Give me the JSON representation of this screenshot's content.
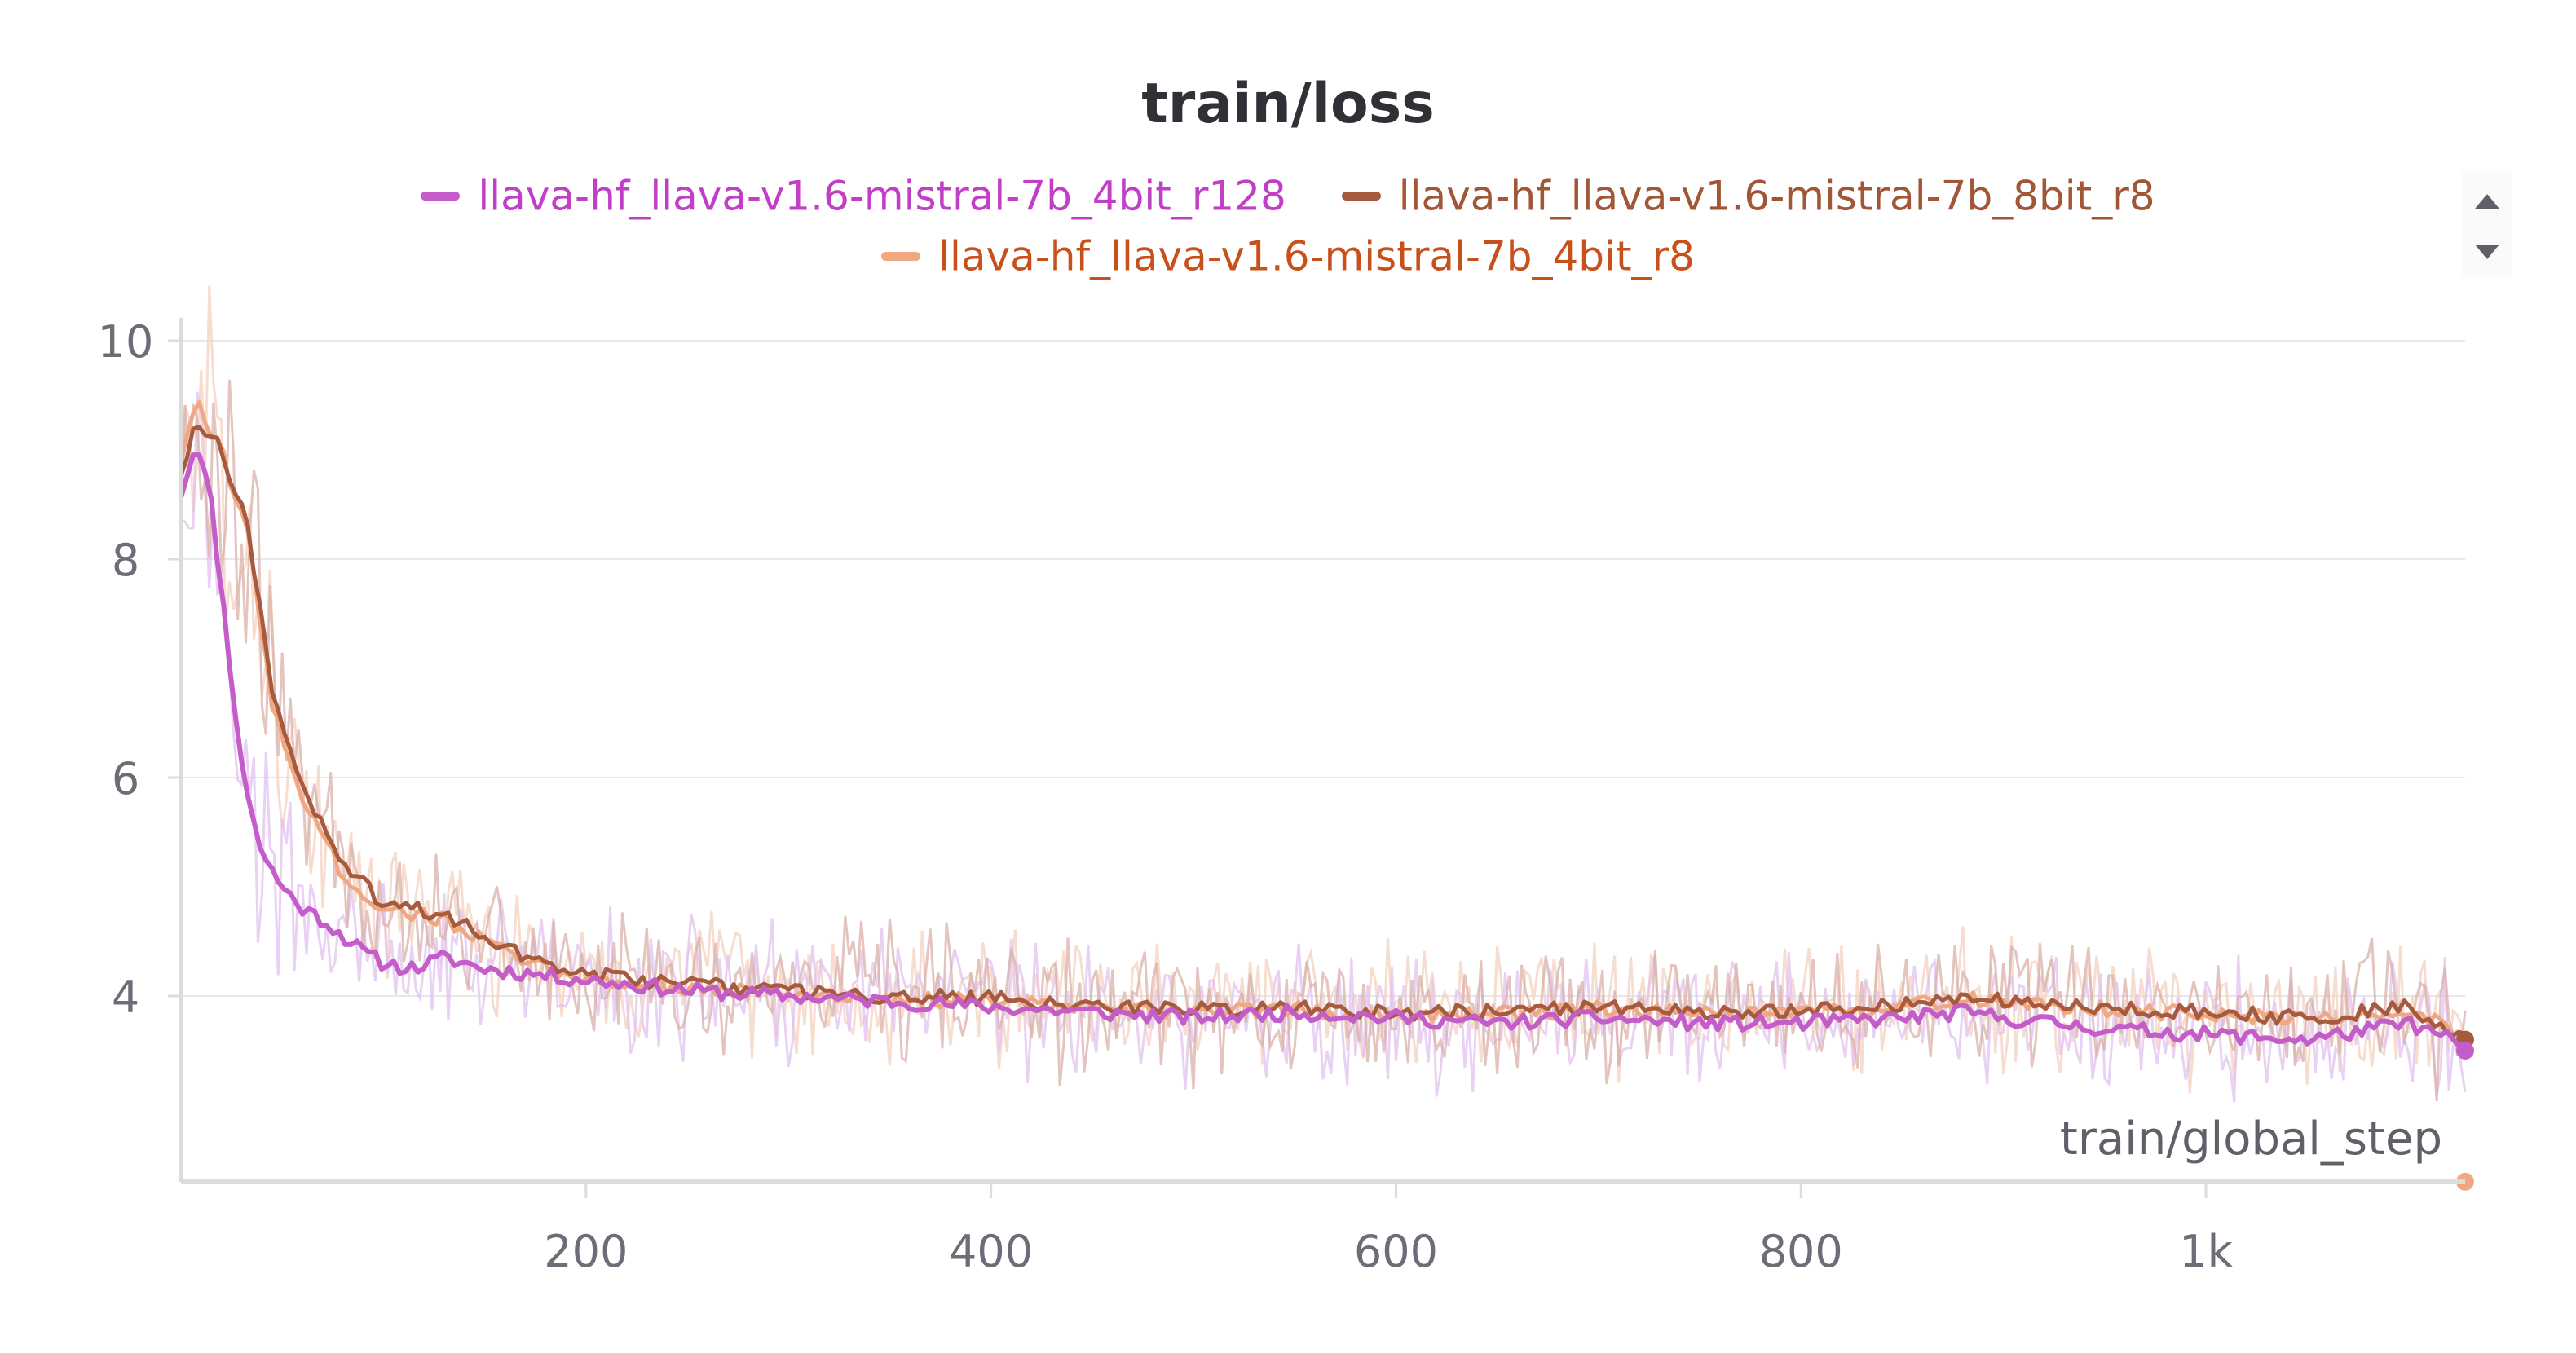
{
  "chart_data": {
    "type": "line",
    "title": "train/loss",
    "xlabel": "train/global_step",
    "ylabel": "",
    "xlim": [
      0,
      1128
    ],
    "ylim": [
      2.2,
      10.2
    ],
    "x_ticks": [
      {
        "value": 200,
        "label": "200"
      },
      {
        "value": 400,
        "label": "400"
      },
      {
        "value": 600,
        "label": "600"
      },
      {
        "value": 800,
        "label": "800"
      },
      {
        "value": 1000,
        "label": "1k"
      }
    ],
    "y_ticks": [
      {
        "value": 4,
        "label": "4"
      },
      {
        "value": 6,
        "label": "6"
      },
      {
        "value": 8,
        "label": "8"
      },
      {
        "value": 10,
        "label": "10"
      }
    ],
    "grid": true,
    "legend_position": "top-center",
    "series": [
      {
        "name": "llava-hf_llava-v1.6-mistral-7b_4bit_r128",
        "color": "#c45cc9",
        "text_color": "#c13fc7",
        "raw_color": "#e2c2ef",
        "smoothed": [
          [
            0,
            8.6
          ],
          [
            8,
            9.1
          ],
          [
            15,
            8.5
          ],
          [
            22,
            7.4
          ],
          [
            30,
            6.1
          ],
          [
            40,
            5.3
          ],
          [
            50,
            5.0
          ],
          [
            60,
            4.8
          ],
          [
            70,
            4.7
          ],
          [
            80,
            4.55
          ],
          [
            90,
            4.4
          ],
          [
            100,
            4.3
          ],
          [
            115,
            4.25
          ],
          [
            130,
            4.35
          ],
          [
            150,
            4.25
          ],
          [
            175,
            4.2
          ],
          [
            200,
            4.15
          ],
          [
            250,
            4.05
          ],
          [
            300,
            4.0
          ],
          [
            350,
            3.95
          ],
          [
            400,
            3.9
          ],
          [
            450,
            3.85
          ],
          [
            500,
            3.8
          ],
          [
            550,
            3.85
          ],
          [
            600,
            3.8
          ],
          [
            650,
            3.75
          ],
          [
            700,
            3.8
          ],
          [
            750,
            3.75
          ],
          [
            800,
            3.75
          ],
          [
            850,
            3.8
          ],
          [
            880,
            3.85
          ],
          [
            900,
            3.8
          ],
          [
            950,
            3.7
          ],
          [
            1000,
            3.65
          ],
          [
            1050,
            3.6
          ],
          [
            1100,
            3.75
          ],
          [
            1128,
            3.55
          ]
        ],
        "final_value": 3.5
      },
      {
        "name": "llava-hf_llava-v1.6-mistral-7b_8bit_r8",
        "color": "#a65a3e",
        "text_color": "#a15636",
        "raw_color": "#d9b0a8",
        "smoothed": [
          [
            0,
            8.8
          ],
          [
            8,
            9.3
          ],
          [
            20,
            9.0
          ],
          [
            33,
            8.3
          ],
          [
            45,
            6.8
          ],
          [
            60,
            5.9
          ],
          [
            80,
            5.2
          ],
          [
            100,
            4.85
          ],
          [
            130,
            4.75
          ],
          [
            150,
            4.55
          ],
          [
            170,
            4.35
          ],
          [
            200,
            4.2
          ],
          [
            250,
            4.1
          ],
          [
            300,
            4.05
          ],
          [
            350,
            4.0
          ],
          [
            400,
            3.98
          ],
          [
            450,
            3.9
          ],
          [
            500,
            3.88
          ],
          [
            550,
            3.9
          ],
          [
            600,
            3.85
          ],
          [
            650,
            3.85
          ],
          [
            700,
            3.9
          ],
          [
            750,
            3.85
          ],
          [
            800,
            3.85
          ],
          [
            850,
            3.92
          ],
          [
            880,
            4.0
          ],
          [
            900,
            3.95
          ],
          [
            950,
            3.9
          ],
          [
            1000,
            3.85
          ],
          [
            1050,
            3.8
          ],
          [
            1100,
            3.9
          ],
          [
            1128,
            3.6
          ]
        ],
        "final_value": 3.6
      },
      {
        "name": "llava-hf_llava-v1.6-mistral-7b_4bit_r8",
        "color": "#f0a882",
        "text_color": "#c8501a",
        "raw_color": "#f3d2c0",
        "smoothed": [
          [
            0,
            8.9
          ],
          [
            8,
            9.4
          ],
          [
            20,
            9.0
          ],
          [
            33,
            8.2
          ],
          [
            45,
            6.7
          ],
          [
            60,
            5.8
          ],
          [
            80,
            5.1
          ],
          [
            100,
            4.8
          ],
          [
            130,
            4.7
          ],
          [
            150,
            4.5
          ],
          [
            170,
            4.3
          ],
          [
            200,
            4.15
          ],
          [
            250,
            4.08
          ],
          [
            300,
            4.02
          ],
          [
            350,
            3.98
          ],
          [
            400,
            3.95
          ],
          [
            450,
            3.88
          ],
          [
            500,
            3.86
          ],
          [
            550,
            3.88
          ],
          [
            600,
            3.83
          ],
          [
            650,
            3.83
          ],
          [
            700,
            3.88
          ],
          [
            750,
            3.83
          ],
          [
            800,
            3.83
          ],
          [
            850,
            3.9
          ],
          [
            880,
            3.98
          ],
          [
            900,
            3.93
          ],
          [
            950,
            3.88
          ],
          [
            1000,
            3.83
          ],
          [
            1050,
            3.78
          ],
          [
            1100,
            3.88
          ],
          [
            1128,
            3.65
          ]
        ],
        "final_value": 2.3
      }
    ]
  },
  "legend_scroll": {
    "up_icon": "triangle-up-icon",
    "down_icon": "triangle-down-icon"
  },
  "colors": {
    "axis": "#dcdcdc",
    "grid": "#e8e8e8",
    "tick_text": "#6b6e76",
    "title": "#2f3137"
  }
}
